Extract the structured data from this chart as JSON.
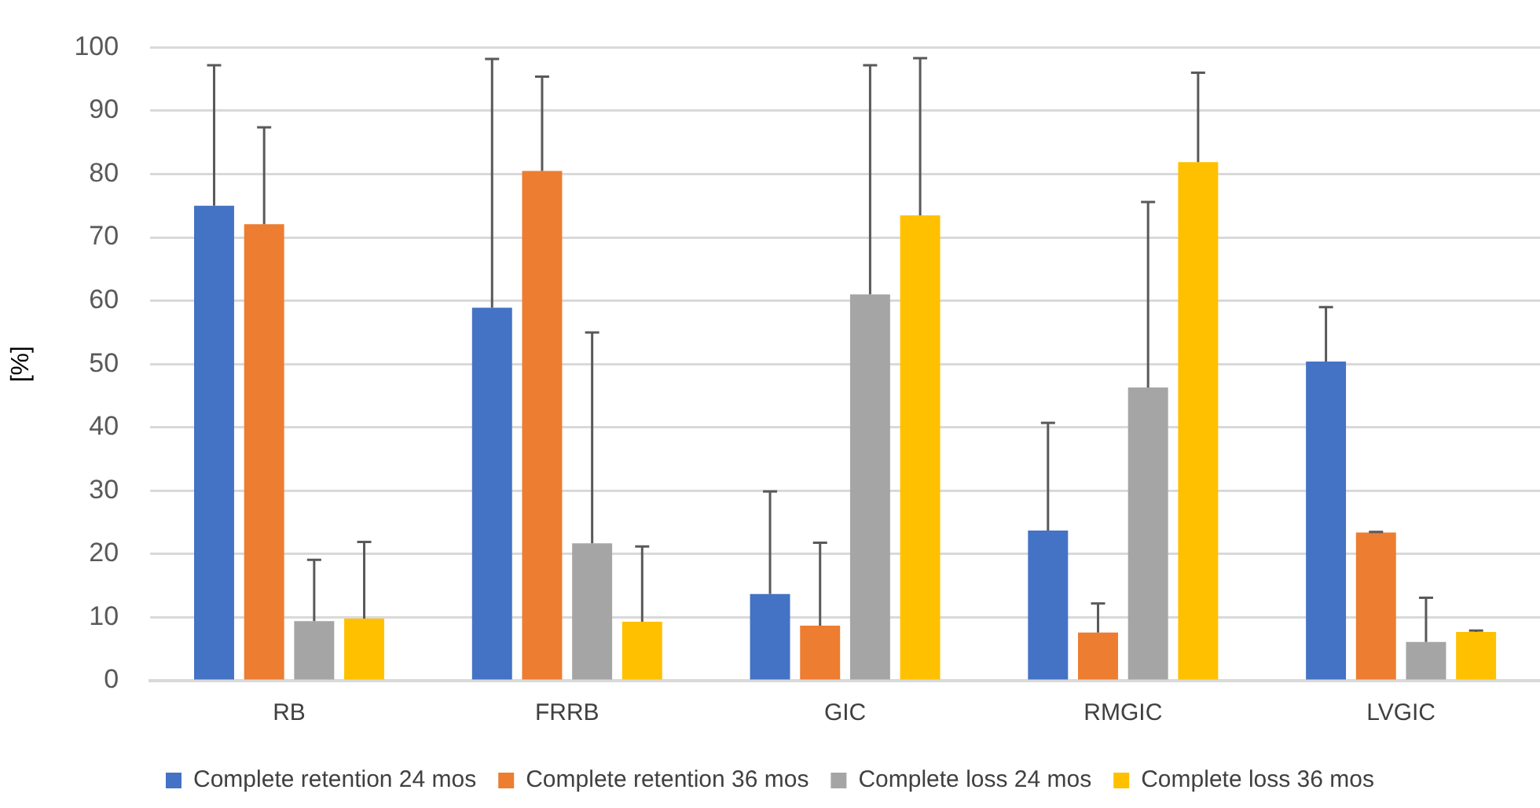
{
  "chart_data": {
    "type": "bar",
    "ylabel": "[%]",
    "categories": [
      "RB",
      "FRRB",
      "GIC",
      "RMGIC",
      "LVGIC"
    ],
    "series": [
      {
        "name": "Complete retention 24 mos",
        "color": "#4472c4",
        "values": [
          75.0,
          58.9,
          13.7,
          23.7,
          50.4
        ],
        "errors": [
          [
            75.0,
            97.2
          ],
          [
            58.9,
            98.2
          ],
          [
            13.7,
            29.9
          ],
          [
            23.7,
            40.7
          ],
          [
            50.4,
            59.0
          ]
        ]
      },
      {
        "name": "Complete retention 36 mos",
        "color": "#ed7d31",
        "values": [
          72.1,
          80.5,
          8.7,
          7.6,
          23.4
        ],
        "errors": [
          [
            72.1,
            87.4
          ],
          [
            80.5,
            95.4
          ],
          [
            8.7,
            21.8
          ],
          [
            7.6,
            12.2
          ],
          [
            23.4,
            23.5
          ]
        ]
      },
      {
        "name": "Complete loss 24 mos",
        "color": "#a5a5a5",
        "values": [
          9.4,
          21.7,
          61.0,
          46.3,
          6.1
        ],
        "errors": [
          [
            9.4,
            19.1
          ],
          [
            21.7,
            55.0
          ],
          [
            61.0,
            97.2
          ],
          [
            46.3,
            75.6
          ],
          [
            6.1,
            13.1
          ]
        ]
      },
      {
        "name": "Complete loss 36 mos",
        "color": "#ffc000",
        "values": [
          9.8,
          9.3,
          73.5,
          81.9,
          7.7
        ],
        "errors": [
          [
            9.8,
            21.9
          ],
          [
            9.3,
            21.2
          ],
          [
            73.5,
            98.3
          ],
          [
            81.9,
            96.0
          ],
          [
            7.7,
            7.9
          ]
        ]
      }
    ],
    "ylim": [
      0,
      100
    ],
    "yticks": [
      0,
      10,
      20,
      30,
      40,
      50,
      60,
      70,
      80,
      90,
      100
    ],
    "grid": "y",
    "legend": "bottom"
  }
}
